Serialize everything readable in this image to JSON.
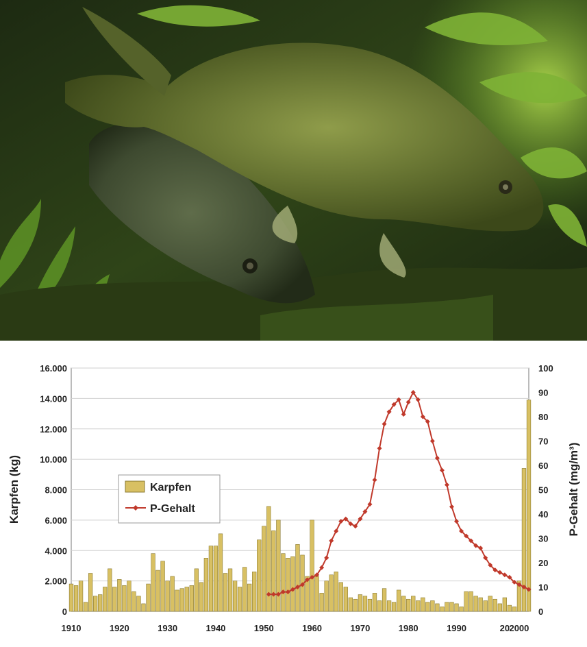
{
  "photo": {
    "subject": "two-carp-underwater-photo"
  },
  "chart_data": {
    "type": "bar+line",
    "title": "",
    "xlabel": "",
    "ylabel_left": "Karpfen (kg)",
    "ylabel_right": "P-Gehalt (mg/m³)",
    "ylim_left": [
      0,
      16000
    ],
    "ylim_right": [
      0,
      100
    ],
    "xlim": [
      1910,
      2005
    ],
    "yticks_left": [
      "0",
      "2.000",
      "4.000",
      "6.000",
      "8.000",
      "10.000",
      "12.000",
      "14.000",
      "16.000"
    ],
    "yticks_right": [
      "0",
      "10",
      "20",
      "30",
      "40",
      "50",
      "60",
      "70",
      "80",
      "90",
      "100"
    ],
    "xticks": [
      "1910",
      "1920",
      "1930",
      "1940",
      "1950",
      "1960",
      "1970",
      "1980",
      "1990",
      "20",
      "2000"
    ],
    "grid": true,
    "legend_placement": "middle-left",
    "bar_color": "#d8c063",
    "line_color": "#c0392b",
    "series": [
      {
        "name": "Karpfen",
        "kind": "bar",
        "axis": "left",
        "x": [
          1910,
          1911,
          1912,
          1913,
          1914,
          1915,
          1916,
          1917,
          1918,
          1919,
          1920,
          1921,
          1922,
          1923,
          1924,
          1925,
          1926,
          1927,
          1928,
          1929,
          1930,
          1931,
          1932,
          1933,
          1934,
          1935,
          1936,
          1937,
          1938,
          1939,
          1940,
          1941,
          1942,
          1943,
          1944,
          1945,
          1946,
          1947,
          1948,
          1949,
          1950,
          1951,
          1952,
          1953,
          1954,
          1955,
          1956,
          1957,
          1958,
          1959,
          1960,
          1961,
          1962,
          1963,
          1964,
          1965,
          1966,
          1967,
          1968,
          1969,
          1970,
          1971,
          1972,
          1973,
          1974,
          1975,
          1976,
          1977,
          1978,
          1979,
          1980,
          1981,
          1982,
          1983,
          1984,
          1985,
          1986,
          1987,
          1988,
          1989,
          1990,
          1991,
          1992,
          1993,
          1994,
          1995,
          1996,
          1997,
          1998,
          1999,
          2000,
          2001,
          2002,
          2003,
          2004,
          2005
        ],
        "values": [
          1800,
          1700,
          2000,
          600,
          2500,
          1000,
          1100,
          1600,
          2800,
          1600,
          2100,
          1700,
          2000,
          1300,
          1000,
          500,
          1800,
          3800,
          2700,
          3300,
          2000,
          2300,
          1400,
          1500,
          1600,
          1700,
          2800,
          1900,
          3500,
          4300,
          4300,
          5100,
          2500,
          2800,
          2000,
          1600,
          2900,
          1800,
          2600,
          4700,
          5600,
          6900,
          5300,
          6000,
          3800,
          3500,
          3600,
          4400,
          3700,
          2300,
          6000,
          2300,
          1200,
          2000,
          2400,
          2600,
          1900,
          1600,
          900,
          800,
          1100,
          1000,
          800,
          1200,
          700,
          1500,
          700,
          600,
          1400,
          1000,
          800,
          1000,
          700,
          900,
          600,
          700,
          500,
          300,
          600,
          600,
          500,
          300,
          1300,
          1300,
          1000,
          900,
          700,
          1000,
          800,
          500,
          900,
          400,
          300,
          2000,
          9400,
          13900
        ]
      },
      {
        "name": "P-Gehalt",
        "kind": "line",
        "axis": "right",
        "x": [
          1951,
          1952,
          1953,
          1954,
          1955,
          1956,
          1957,
          1958,
          1959,
          1960,
          1961,
          1962,
          1963,
          1964,
          1965,
          1966,
          1967,
          1968,
          1969,
          1970,
          1971,
          1972,
          1973,
          1974,
          1975,
          1976,
          1977,
          1978,
          1979,
          1980,
          1981,
          1982,
          1983,
          1984,
          1985,
          1986,
          1987,
          1988,
          1989,
          1990,
          1991,
          1992,
          1993,
          1994,
          1995,
          1996,
          1997,
          1998,
          1999,
          2000,
          2001,
          2002,
          2003,
          2004,
          2005
        ],
        "values": [
          7,
          7,
          7,
          8,
          8,
          9,
          10,
          11,
          13,
          14,
          15,
          18,
          22,
          29,
          33,
          37,
          38,
          36,
          35,
          38,
          41,
          44,
          54,
          67,
          77,
          82,
          85,
          87,
          81,
          86,
          90,
          87,
          80,
          78,
          70,
          63,
          58,
          52,
          43,
          37,
          33,
          31,
          29,
          27,
          26,
          22,
          19,
          17,
          16,
          15,
          14,
          12,
          11,
          10,
          9
        ]
      }
    ]
  }
}
